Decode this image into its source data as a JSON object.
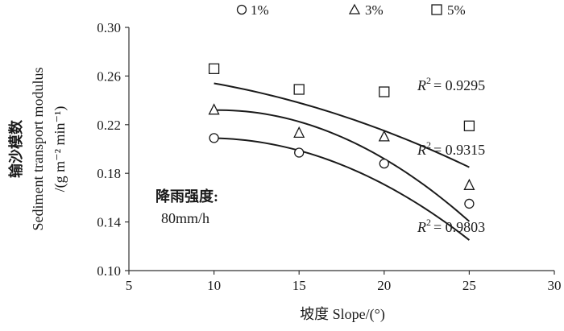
{
  "chart_data": {
    "type": "scatter",
    "xlabel": "坡度 Slope/(°)",
    "ylabel_cn": "输沙模数",
    "ylabel_en": "Sediment transport modulus",
    "ylabel_unit": "/(g m⁻² min⁻¹)",
    "xlim": [
      5,
      30
    ],
    "ylim": [
      0.1,
      0.3
    ],
    "x_ticks": [
      "5",
      "10",
      "15",
      "20",
      "25",
      "30"
    ],
    "y_ticks": [
      "0.10",
      "0.14",
      "0.18",
      "0.22",
      "0.26",
      "0.30"
    ],
    "legend_placement": "top",
    "grid": false,
    "series": [
      {
        "name": "1%",
        "marker": "circle",
        "x": [
          10,
          15,
          20,
          25
        ],
        "values": [
          0.209,
          0.197,
          0.188,
          0.155
        ],
        "fit_r2_label": "= 0.9803",
        "fit_poly": [
          -0.000355,
          0.00684,
          0.17601
        ]
      },
      {
        "name": "3%",
        "marker": "triangle",
        "x": [
          10,
          15,
          20,
          25
        ],
        "values": [
          0.232,
          0.213,
          0.21,
          0.17
        ],
        "fit_r2_label": "= 0.9315",
        "fit_poly": [
          -0.00042,
          0.0086,
          0.18797
        ]
      },
      {
        "name": "5%",
        "marker": "square",
        "x": [
          10,
          15,
          20,
          25
        ],
        "values": [
          0.266,
          0.249,
          0.247,
          0.219
        ],
        "fit_r2_label": "= 0.9295",
        "fit_poly": [
          -0.00014,
          0.0003,
          0.265
        ]
      }
    ],
    "annotation_line1": "降雨强度:",
    "annotation_line2": "80mm/h"
  }
}
